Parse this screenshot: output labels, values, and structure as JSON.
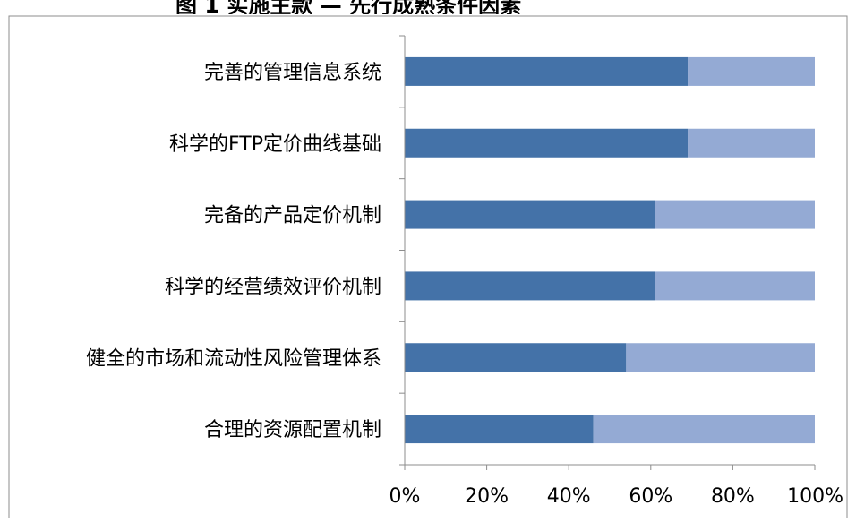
{
  "chart_data": {
    "type": "bar",
    "orientation": "horizontal",
    "stacked": "percent",
    "title": "",
    "categories": [
      "完善的管理信息系统",
      "科学的FTP定价曲线基础",
      "完备的产品定价机制",
      "科学的经营绩效评价机制",
      "健全的市场和流动性风险管理体系",
      "合理的资源配置机制"
    ],
    "series": [
      {
        "color": "#4472A8",
        "values": [
          69,
          69,
          61,
          61,
          54,
          46
        ]
      },
      {
        "color": "#94AAD4",
        "values": [
          31,
          31,
          39,
          39,
          46,
          54
        ]
      }
    ],
    "xlim": [
      0,
      100
    ],
    "xticks": [
      "0%",
      "20%",
      "40%",
      "60%",
      "80%",
      "100%"
    ],
    "grid": false,
    "legend": "none"
  }
}
